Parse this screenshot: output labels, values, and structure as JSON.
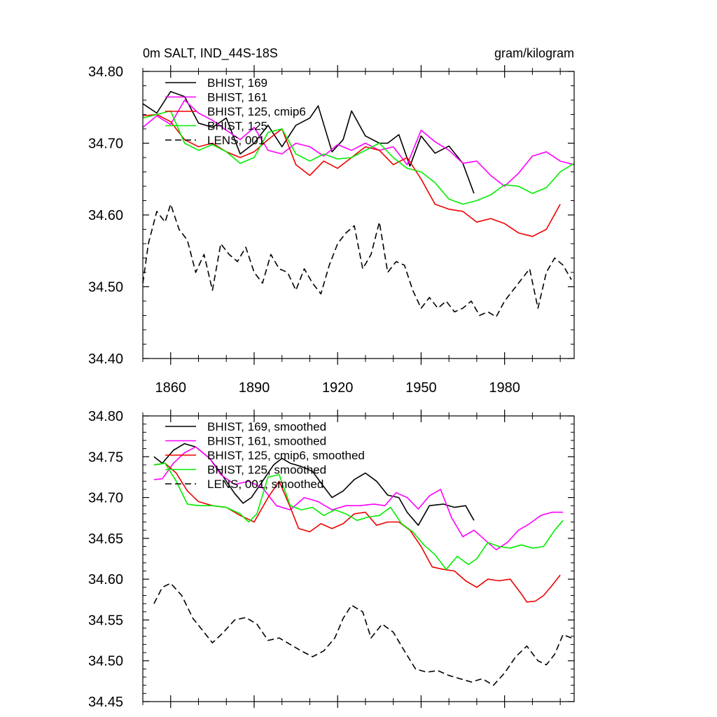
{
  "colors": {
    "black": "#000000",
    "magenta": "#ff00ff",
    "red": "#ee0000",
    "green": "#00ee00"
  },
  "chart_data": [
    {
      "type": "line",
      "title_left": "0m SALT, IND_44S-18S",
      "title_right": "gram/kilogram",
      "xlim": [
        1850,
        2005
      ],
      "ylim": [
        34.4,
        34.8
      ],
      "yticks": [
        34.4,
        34.5,
        34.6,
        34.7,
        34.8
      ],
      "ytick_labels": [
        "34.40",
        "34.50",
        "34.60",
        "34.70",
        "34.80"
      ],
      "xticks": [
        1860,
        1890,
        1920,
        1950,
        1980
      ],
      "xtick_labels": [
        "1860",
        "1890",
        "1920",
        "1950",
        "1980"
      ],
      "legend": [
        "BHIST, 169",
        "BHIST, 161",
        "BHIST, 125, cmip6",
        "BHIST, 125",
        "LENS, 001"
      ],
      "series": [
        {
          "name": "BHIST, 169",
          "color": "#000000",
          "dash": "solid",
          "x": [
            1850,
            1855,
            1860,
            1865,
            1870,
            1875,
            1880,
            1885,
            1890,
            1895,
            1900,
            1905,
            1910,
            1913,
            1918,
            1922,
            1925,
            1930,
            1935,
            1938,
            1942,
            1946,
            1950,
            1955,
            1960,
            1965,
            1969
          ],
          "y": [
            34.755,
            34.742,
            34.772,
            34.765,
            34.728,
            34.722,
            34.735,
            34.685,
            34.7,
            34.725,
            34.695,
            34.725,
            34.735,
            34.752,
            34.688,
            34.705,
            34.745,
            34.71,
            34.7,
            34.7,
            34.712,
            34.668,
            34.71,
            34.686,
            34.696,
            34.672,
            34.63
          ]
        },
        {
          "name": "BHIST, 161",
          "color": "#ff00ff",
          "dash": "solid",
          "x": [
            1850,
            1855,
            1860,
            1865,
            1870,
            1875,
            1880,
            1885,
            1890,
            1895,
            1900,
            1905,
            1910,
            1915,
            1920,
            1925,
            1930,
            1935,
            1940,
            1945,
            1950,
            1955,
            1960,
            1965,
            1970,
            1975,
            1980,
            1985,
            1990,
            1995,
            2000,
            2005
          ],
          "y": [
            34.722,
            34.738,
            34.726,
            34.76,
            34.742,
            34.732,
            34.718,
            34.705,
            34.722,
            34.69,
            34.685,
            34.7,
            34.695,
            34.682,
            34.698,
            34.69,
            34.7,
            34.69,
            34.695,
            34.67,
            34.718,
            34.702,
            34.69,
            34.672,
            34.675,
            34.655,
            34.64,
            34.658,
            34.682,
            34.688,
            34.675,
            34.67
          ]
        },
        {
          "name": "BHIST, 125, cmip6",
          "color": "#ee0000",
          "dash": "solid",
          "x": [
            1850,
            1855,
            1860,
            1865,
            1870,
            1875,
            1880,
            1885,
            1890,
            1895,
            1900,
            1905,
            1910,
            1915,
            1920,
            1925,
            1930,
            1935,
            1940,
            1945,
            1950,
            1955,
            1960,
            1965,
            1970,
            1975,
            1980,
            1985,
            1990,
            1995,
            2000
          ],
          "y": [
            34.738,
            34.74,
            34.73,
            34.705,
            34.695,
            34.7,
            34.688,
            34.68,
            34.688,
            34.705,
            34.72,
            34.67,
            34.655,
            34.675,
            34.665,
            34.68,
            34.695,
            34.69,
            34.67,
            34.68,
            34.65,
            34.615,
            34.608,
            34.605,
            34.59,
            34.595,
            34.588,
            34.575,
            34.57,
            34.58,
            34.615
          ]
        },
        {
          "name": "BHIST, 125",
          "color": "#00ee00",
          "dash": "solid",
          "x": [
            1850,
            1855,
            1860,
            1865,
            1870,
            1875,
            1880,
            1885,
            1890,
            1895,
            1900,
            1905,
            1910,
            1915,
            1920,
            1925,
            1930,
            1935,
            1940,
            1945,
            1950,
            1955,
            1960,
            1965,
            1970,
            1975,
            1980,
            1985,
            1990,
            1995,
            2000,
            2005
          ],
          "y": [
            34.735,
            34.74,
            34.745,
            34.7,
            34.69,
            34.698,
            34.688,
            34.672,
            34.68,
            34.715,
            34.72,
            34.685,
            34.675,
            34.685,
            34.678,
            34.68,
            34.69,
            34.7,
            34.68,
            34.665,
            34.66,
            34.645,
            34.622,
            34.615,
            34.62,
            34.628,
            34.642,
            34.64,
            34.63,
            34.638,
            34.66,
            34.672
          ]
        },
        {
          "name": "LENS, 001",
          "color": "#000000",
          "dash": "dashed",
          "x": [
            1850,
            1852,
            1855,
            1858,
            1860,
            1863,
            1866,
            1869,
            1872,
            1875,
            1878,
            1881,
            1884,
            1887,
            1890,
            1893,
            1896,
            1899,
            1902,
            1905,
            1908,
            1911,
            1914,
            1917,
            1920,
            1923,
            1926,
            1929,
            1932,
            1935,
            1938,
            1941,
            1944,
            1947,
            1950,
            1953,
            1956,
            1959,
            1962,
            1965,
            1968,
            1971,
            1974,
            1977,
            1980,
            1983,
            1986,
            1989,
            1992,
            1995,
            1998,
            2001,
            2004
          ],
          "y": [
            34.505,
            34.56,
            34.605,
            34.59,
            34.615,
            34.58,
            34.565,
            34.52,
            34.545,
            34.495,
            34.56,
            34.545,
            34.535,
            34.555,
            34.52,
            34.505,
            34.545,
            34.525,
            34.52,
            34.495,
            34.525,
            34.505,
            34.49,
            34.53,
            34.56,
            34.575,
            34.585,
            34.525,
            34.545,
            34.59,
            34.52,
            34.535,
            34.53,
            34.495,
            34.47,
            34.485,
            34.47,
            34.48,
            34.465,
            34.47,
            34.48,
            34.46,
            34.465,
            34.458,
            34.48,
            34.495,
            34.51,
            34.525,
            34.47,
            34.52,
            34.54,
            34.53,
            34.51
          ]
        }
      ]
    },
    {
      "type": "line",
      "xlim": [
        1850,
        2005
      ],
      "ylim": [
        34.45,
        34.8
      ],
      "yticks": [
        34.45,
        34.5,
        34.55,
        34.6,
        34.65,
        34.7,
        34.75,
        34.8
      ],
      "ytick_labels": [
        "34.45",
        "34.50",
        "34.55",
        "34.60",
        "34.65",
        "34.70",
        "34.75",
        "34.80"
      ],
      "legend": [
        "BHIST, 169, smoothed",
        "BHIST, 161, smoothed",
        "BHIST, 125, cmip6, smoothed",
        "BHIST, 125, smoothed",
        "LENS, 001, smoothed"
      ],
      "series": [
        {
          "name": "BHIST, 169, smoothed",
          "color": "#000000",
          "dash": "solid",
          "x": [
            1854,
            1857,
            1861,
            1865,
            1869,
            1874,
            1878,
            1883,
            1886,
            1889,
            1893,
            1897,
            1900,
            1903,
            1907,
            1911,
            1914,
            1918,
            1922,
            1926,
            1930,
            1934,
            1938,
            1942,
            1945,
            1949,
            1953,
            1958,
            1962,
            1966,
            1969
          ],
          "y": [
            34.75,
            34.742,
            34.758,
            34.766,
            34.762,
            34.748,
            34.73,
            34.705,
            34.693,
            34.7,
            34.72,
            34.74,
            34.748,
            34.742,
            34.738,
            34.732,
            34.718,
            34.7,
            34.708,
            34.722,
            34.73,
            34.72,
            34.703,
            34.7,
            34.682,
            34.666,
            34.69,
            34.692,
            34.688,
            34.69,
            34.672
          ]
        },
        {
          "name": "BHIST, 161, smoothed",
          "color": "#ff00ff",
          "dash": "solid",
          "x": [
            1854,
            1857,
            1861,
            1865,
            1869,
            1874,
            1878,
            1883,
            1888,
            1893,
            1898,
            1903,
            1908,
            1913,
            1918,
            1923,
            1928,
            1933,
            1937,
            1941,
            1945,
            1949,
            1953,
            1957,
            1961,
            1965,
            1969,
            1973,
            1977,
            1981,
            1985,
            1989,
            1993,
            1997,
            2001
          ],
          "y": [
            34.722,
            34.723,
            34.742,
            34.755,
            34.762,
            34.748,
            34.728,
            34.716,
            34.72,
            34.712,
            34.69,
            34.685,
            34.7,
            34.695,
            34.685,
            34.69,
            34.69,
            34.692,
            34.69,
            34.706,
            34.7,
            34.686,
            34.702,
            34.71,
            34.675,
            34.652,
            34.66,
            34.648,
            34.636,
            34.645,
            34.66,
            34.668,
            34.678,
            34.682,
            34.682
          ]
        },
        {
          "name": "BHIST, 125, cmip6, smoothed",
          "color": "#ee0000",
          "dash": "solid",
          "x": [
            1854,
            1858,
            1862,
            1866,
            1870,
            1875,
            1880,
            1885,
            1890,
            1895,
            1899,
            1903,
            1906,
            1910,
            1914,
            1918,
            1922,
            1926,
            1930,
            1934,
            1938,
            1942,
            1946,
            1950,
            1954,
            1958,
            1962,
            1966,
            1970,
            1974,
            1978,
            1982,
            1986,
            1988,
            1991,
            1994,
            1997,
            2000
          ],
          "y": [
            34.74,
            34.742,
            34.73,
            34.708,
            34.695,
            34.69,
            34.688,
            34.678,
            34.67,
            34.7,
            34.72,
            34.688,
            34.662,
            34.658,
            34.668,
            34.662,
            34.668,
            34.68,
            34.682,
            34.666,
            34.67,
            34.67,
            34.66,
            34.64,
            34.615,
            34.612,
            34.61,
            34.598,
            34.59,
            34.6,
            34.598,
            34.6,
            34.582,
            34.572,
            34.573,
            34.58,
            34.592,
            34.605
          ]
        },
        {
          "name": "BHIST, 125, smoothed",
          "color": "#00ee00",
          "dash": "solid",
          "x": [
            1854,
            1858,
            1862,
            1866,
            1870,
            1875,
            1880,
            1885,
            1888,
            1891,
            1895,
            1899,
            1903,
            1907,
            1911,
            1915,
            1919,
            1923,
            1927,
            1931,
            1935,
            1939,
            1943,
            1947,
            1951,
            1955,
            1959,
            1963,
            1967,
            1970,
            1974,
            1978,
            1982,
            1986,
            1990,
            1994,
            1998,
            2001
          ],
          "y": [
            34.74,
            34.742,
            34.72,
            34.692,
            34.69,
            34.69,
            34.688,
            34.68,
            34.67,
            34.68,
            34.725,
            34.728,
            34.69,
            34.685,
            34.688,
            34.678,
            34.685,
            34.68,
            34.672,
            34.676,
            34.678,
            34.688,
            34.668,
            34.658,
            34.642,
            34.63,
            34.612,
            34.628,
            34.618,
            34.625,
            34.645,
            34.64,
            34.638,
            34.642,
            34.638,
            34.64,
            34.66,
            34.672
          ]
        },
        {
          "name": "LENS, 001, smoothed",
          "color": "#000000",
          "dash": "dashed",
          "x": [
            1854,
            1857,
            1860,
            1864,
            1868,
            1872,
            1875,
            1879,
            1883,
            1887,
            1891,
            1895,
            1899,
            1903,
            1907,
            1911,
            1915,
            1919,
            1922,
            1925,
            1929,
            1932,
            1936,
            1940,
            1944,
            1948,
            1952,
            1956,
            1960,
            1964,
            1968,
            1972,
            1976,
            1980,
            1984,
            1988,
            1992,
            1995,
            1998,
            2001,
            2004
          ],
          "y": [
            34.57,
            34.59,
            34.595,
            34.58,
            34.552,
            34.535,
            34.522,
            34.535,
            34.55,
            34.553,
            34.545,
            34.525,
            34.528,
            34.52,
            34.512,
            34.505,
            34.512,
            34.528,
            34.552,
            34.568,
            34.56,
            34.528,
            34.545,
            34.535,
            34.512,
            34.49,
            34.486,
            34.488,
            34.482,
            34.478,
            34.474,
            34.478,
            34.47,
            34.485,
            34.505,
            34.518,
            34.5,
            34.495,
            34.508,
            34.532,
            34.528
          ]
        }
      ]
    }
  ]
}
